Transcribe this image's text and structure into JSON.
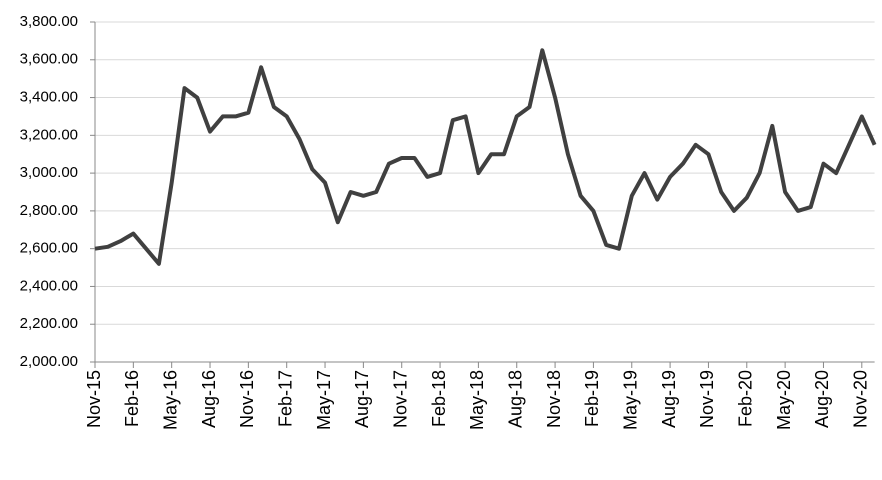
{
  "chart_data": {
    "type": "line",
    "categories": [
      "Nov-15",
      null,
      null,
      "Feb-16",
      null,
      null,
      "May-16",
      null,
      null,
      "Aug-16",
      null,
      null,
      "Nov-16",
      null,
      null,
      "Feb-17",
      null,
      null,
      "May-17",
      null,
      null,
      "Aug-17",
      null,
      null,
      "Nov-17",
      null,
      null,
      "Feb-18",
      null,
      null,
      "May-18",
      null,
      null,
      "Aug-18",
      null,
      null,
      "Nov-18",
      null,
      null,
      "Feb-19",
      null,
      null,
      "May-19",
      null,
      null,
      "Aug-19",
      null,
      null,
      "Nov-19",
      null,
      null,
      "Feb-20",
      null,
      null,
      "May-20",
      null,
      null,
      "Aug-20",
      null,
      null,
      "Nov-20",
      null
    ],
    "series": [
      {
        "color": "#404040",
        "values": [
          2600,
          2610,
          2640,
          2680,
          2600,
          2520,
          2950,
          3450,
          3400,
          3220,
          3300,
          3300,
          3320,
          3560,
          3350,
          3300,
          3180,
          3020,
          2950,
          2740,
          2900,
          2880,
          2900,
          3050,
          3080,
          3080,
          2980,
          3000,
          3280,
          3300,
          3000,
          3100,
          3100,
          3300,
          3350,
          3650,
          3400,
          3100,
          2880,
          2800,
          2620,
          2600,
          2880,
          3000,
          2860,
          2980,
          3050,
          3150,
          3100,
          2900,
          2800,
          2870,
          3000,
          3250,
          2900,
          2800,
          2820,
          3050,
          3000,
          3150,
          3300,
          3150
        ]
      }
    ],
    "ylim": [
      2000,
      3800
    ],
    "yticks": [
      {
        "value": 2000,
        "label": "2,000.00"
      },
      {
        "value": 2200,
        "label": "2,200.00"
      },
      {
        "value": 2400,
        "label": "2,400.00"
      },
      {
        "value": 2600,
        "label": "2,600.00"
      },
      {
        "value": 2800,
        "label": "2,800.00"
      },
      {
        "value": 3000,
        "label": "3,000.00"
      },
      {
        "value": 3200,
        "label": "3,200.00"
      },
      {
        "value": 3400,
        "label": "3,400.00"
      },
      {
        "value": 3600,
        "label": "3,600.00"
      },
      {
        "value": 3800,
        "label": "3,800.00"
      }
    ],
    "grid": true
  }
}
